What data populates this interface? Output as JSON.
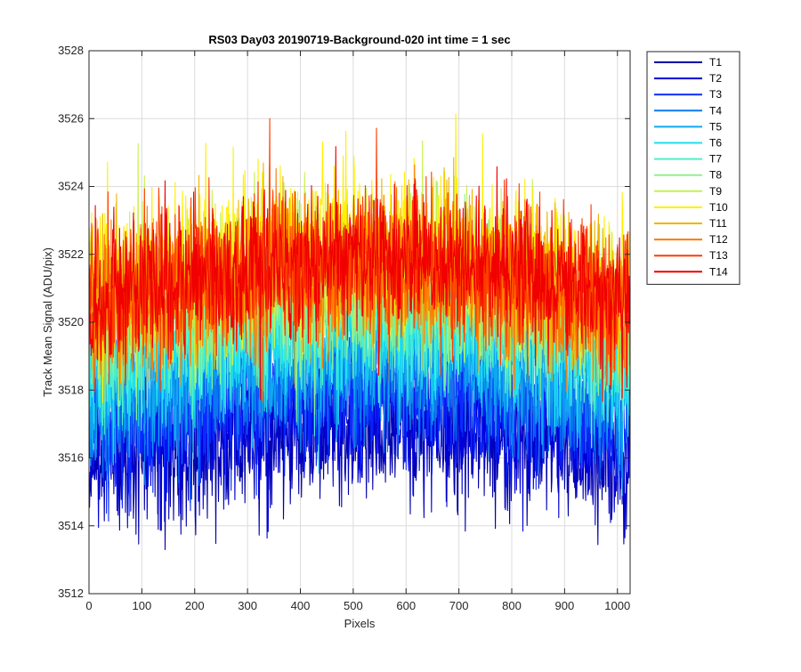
{
  "chart_data": {
    "type": "line",
    "title": "RS03 Day03 20190719-Background-020 int time = 1 sec",
    "xlabel": "Pixels",
    "ylabel": "Track Mean Signal (ADU/pix)",
    "xlim": [
      0,
      1024
    ],
    "ylim": [
      3512,
      3528
    ],
    "xticks": [
      0,
      100,
      200,
      300,
      400,
      500,
      600,
      700,
      800,
      900,
      1000
    ],
    "yticks": [
      3512,
      3514,
      3516,
      3518,
      3520,
      3522,
      3524,
      3526,
      3528
    ],
    "grid": true,
    "legend_position": "outside-top-right",
    "x_range_points": [
      0,
      1023
    ],
    "series": [
      {
        "name": "T1",
        "color": "#0000A8",
        "center": 3516.4,
        "amplitude": 1.0,
        "noise": 1.1
      },
      {
        "name": "T2",
        "color": "#0000D8",
        "center": 3516.9,
        "amplitude": 1.0,
        "noise": 1.1
      },
      {
        "name": "T3",
        "color": "#0A28FF",
        "center": 3517.6,
        "amplitude": 1.1,
        "noise": 1.1
      },
      {
        "name": "T4",
        "color": "#0A78F0",
        "center": 3518.1,
        "amplitude": 1.1,
        "noise": 1.1
      },
      {
        "name": "T5",
        "color": "#10A8F0",
        "center": 3518.7,
        "amplitude": 1.2,
        "noise": 1.1
      },
      {
        "name": "T6",
        "color": "#1EE0F0",
        "center": 3519.3,
        "amplitude": 1.2,
        "noise": 1.1
      },
      {
        "name": "T7",
        "color": "#50F0C8",
        "center": 3519.9,
        "amplitude": 1.2,
        "noise": 1.1
      },
      {
        "name": "T8",
        "color": "#90F090",
        "center": 3520.3,
        "amplitude": 1.3,
        "noise": 1.1
      },
      {
        "name": "T9",
        "color": "#C8F050",
        "center": 3521.1,
        "amplitude": 1.3,
        "noise": 1.1
      },
      {
        "name": "T10",
        "color": "#FFF000",
        "center": 3521.7,
        "amplitude": 1.4,
        "noise": 1.1
      },
      {
        "name": "T11",
        "color": "#F0B400",
        "center": 3521.1,
        "amplitude": 1.3,
        "noise": 1.1
      },
      {
        "name": "T12",
        "color": "#FF7800",
        "center": 3520.8,
        "amplitude": 1.3,
        "noise": 1.1
      },
      {
        "name": "T13",
        "color": "#FF3C00",
        "center": 3521.3,
        "amplitude": 1.3,
        "noise": 1.1
      },
      {
        "name": "T14",
        "color": "#F00000",
        "center": 3521.3,
        "amplitude": 1.3,
        "noise": 1.1
      }
    ]
  }
}
